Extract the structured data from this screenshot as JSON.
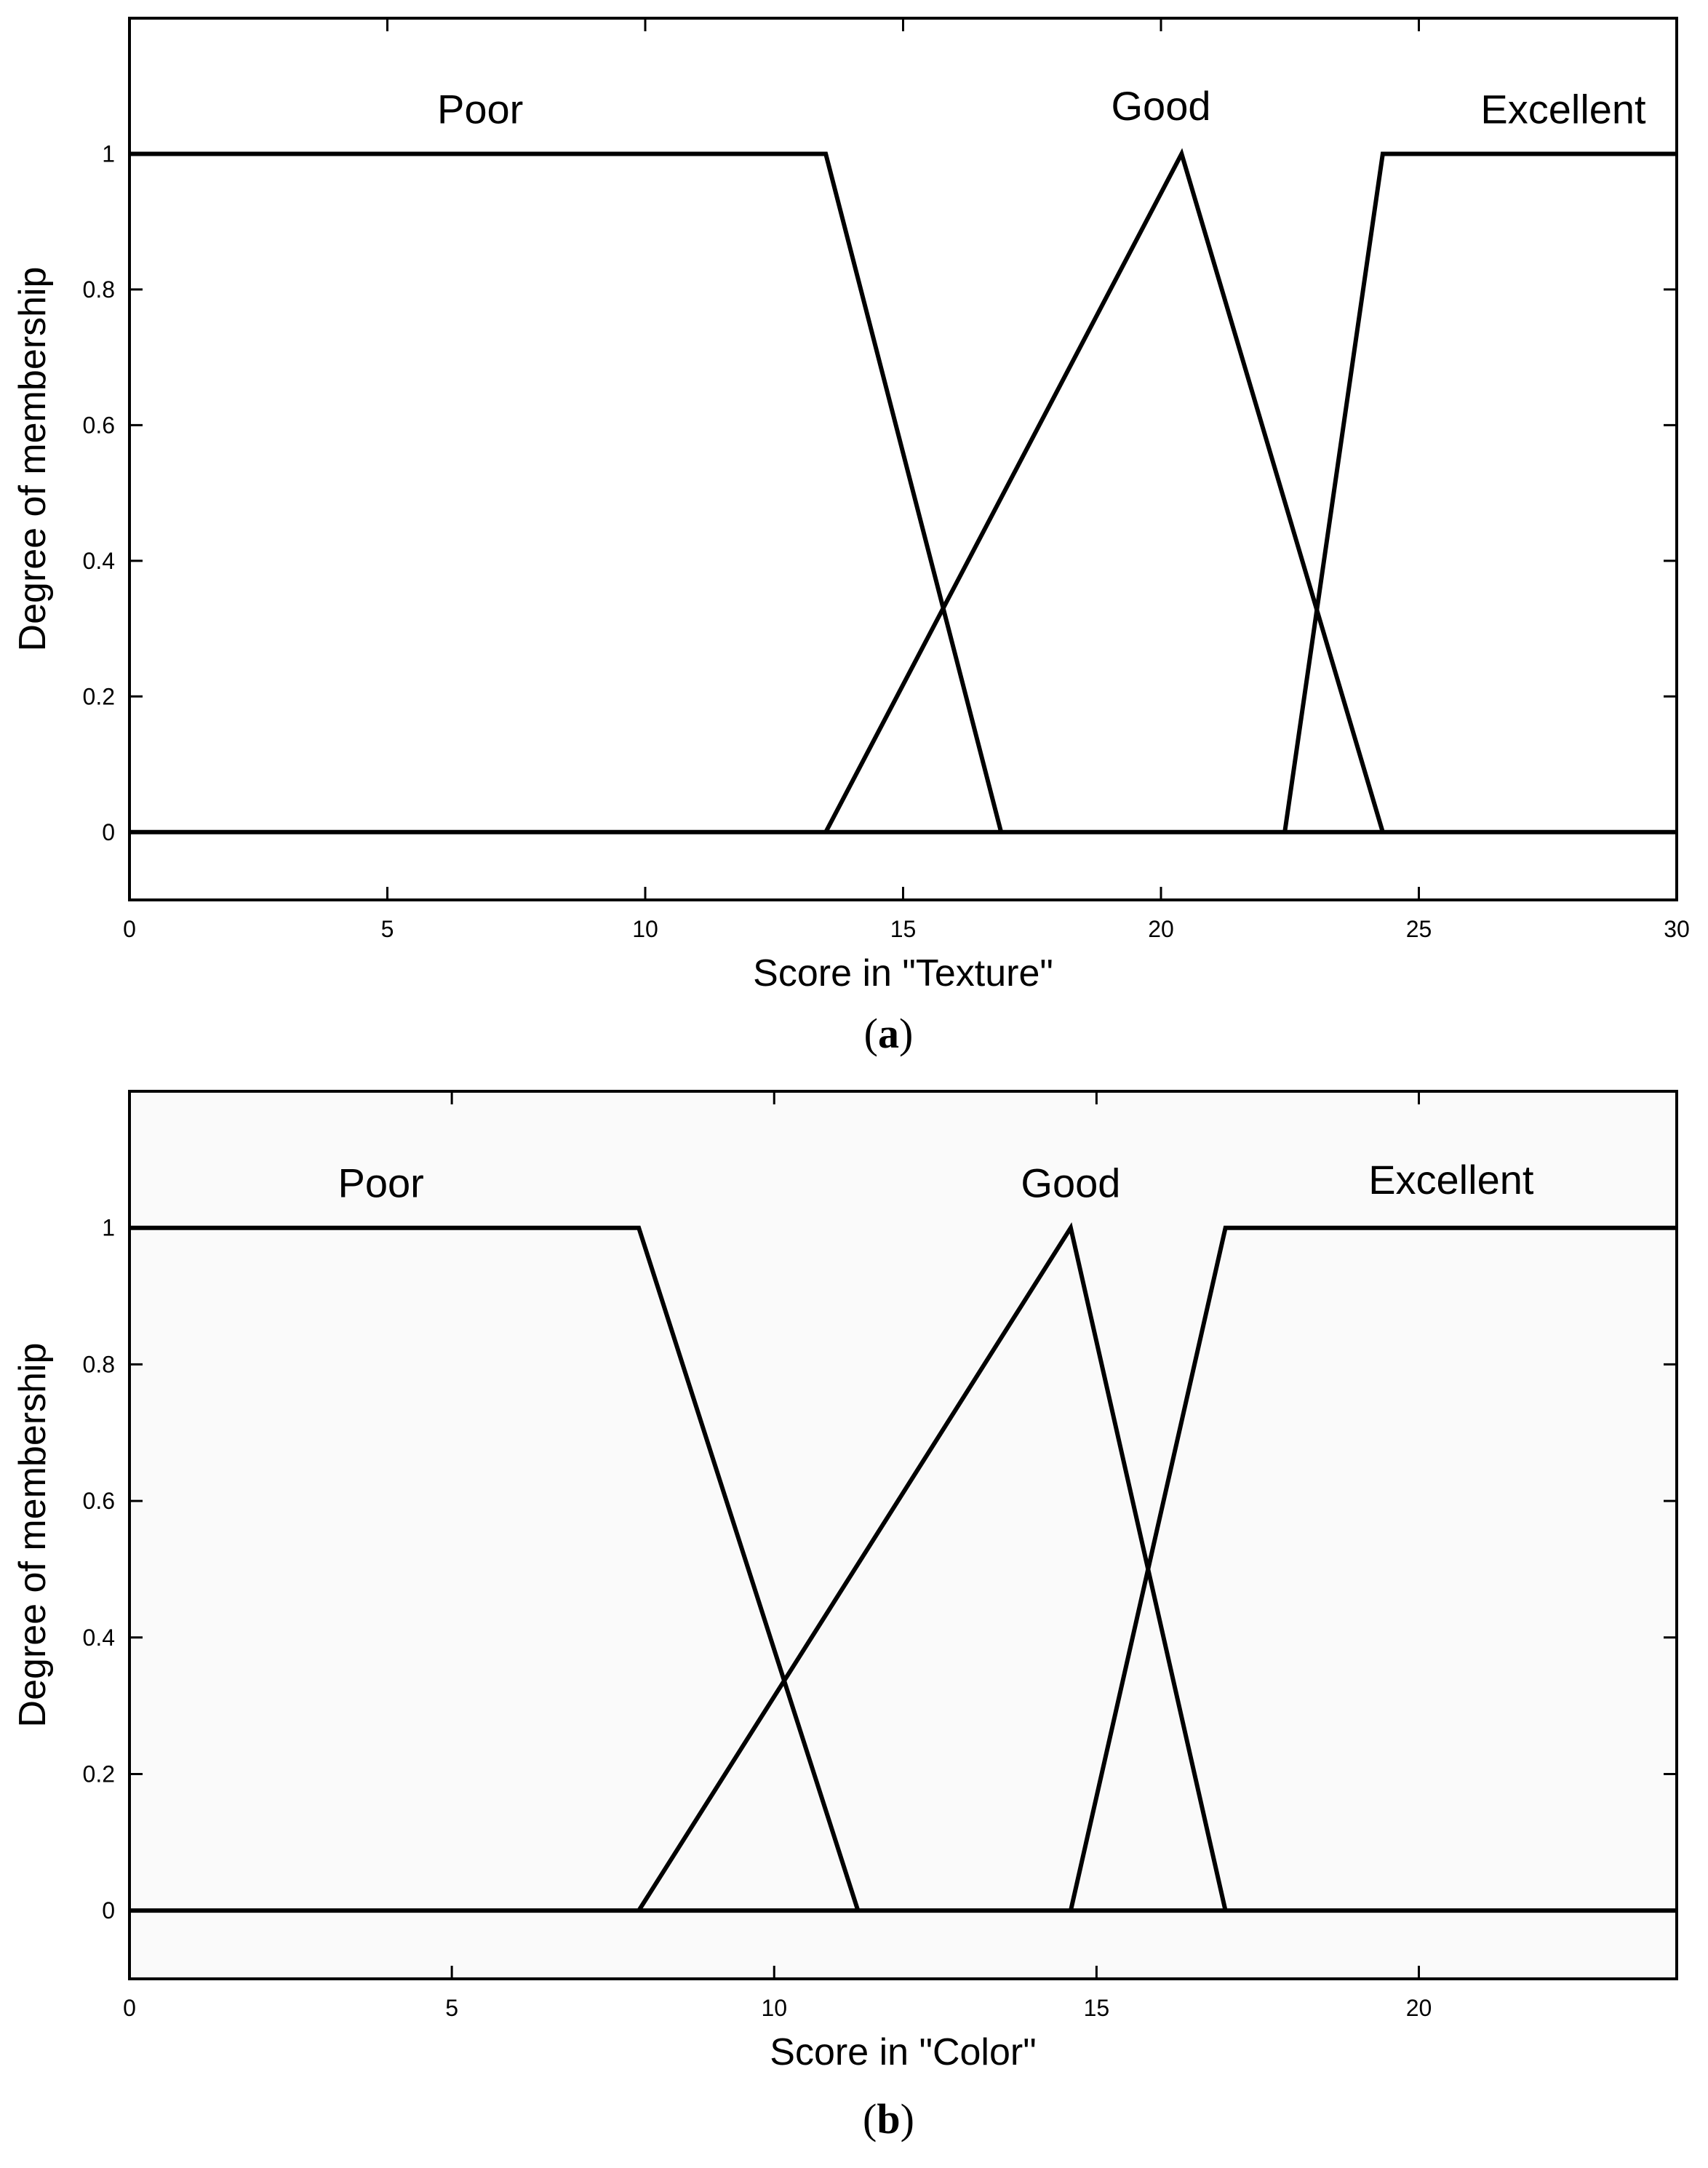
{
  "chart_data": [
    {
      "type": "line",
      "panel_label": {
        "open": "(",
        "letter": "a",
        "close": ")"
      },
      "xlabel": "Score in \"Texture\"",
      "ylabel": "Degree of membership",
      "xlim": [
        0,
        30
      ],
      "ylim": [
        -0.1,
        1.2
      ],
      "x_ticks": [
        0,
        5,
        10,
        15,
        20,
        25,
        30
      ],
      "y_ticks": [
        0,
        0.2,
        0.4,
        0.6,
        0.8,
        1
      ],
      "y_tick_labels": [
        "0",
        "0.2",
        "0.4",
        "0.6",
        "0.8",
        "1"
      ],
      "grid": false,
      "background": "#ffffff",
      "baseline": [
        [
          0,
          0
        ],
        [
          30,
          0
        ]
      ],
      "series": [
        {
          "name": "Poor",
          "points": [
            [
              0,
              1
            ],
            [
              13.5,
              1
            ],
            [
              16.9,
              0
            ]
          ],
          "label_pos": [
            6.8,
            1.045
          ]
        },
        {
          "name": "Good",
          "points": [
            [
              13.5,
              0
            ],
            [
              20.4,
              1
            ],
            [
              24.3,
              0
            ]
          ],
          "label_pos": [
            20.0,
            1.05
          ]
        },
        {
          "name": "Excellent",
          "points": [
            [
              22.4,
              0
            ],
            [
              24.3,
              1
            ],
            [
              30,
              1
            ]
          ],
          "label_pos": [
            27.8,
            1.045
          ]
        }
      ]
    },
    {
      "type": "line",
      "panel_label": {
        "open": "(",
        "letter": "b",
        "close": ")"
      },
      "xlabel": "Score in \"Color\"",
      "ylabel": "Degree of membership",
      "xlim": [
        0,
        24
      ],
      "ylim": [
        -0.1,
        1.2
      ],
      "x_ticks": [
        0,
        5,
        10,
        15,
        20
      ],
      "y_ticks": [
        0,
        0.2,
        0.4,
        0.6,
        0.8,
        1
      ],
      "y_tick_labels": [
        "0",
        "0.2",
        "0.4",
        "0.6",
        "0.8",
        "1"
      ],
      "grid": false,
      "background": "#fafafa",
      "baseline": [
        [
          0,
          0
        ],
        [
          24,
          0
        ]
      ],
      "series": [
        {
          "name": "Poor",
          "points": [
            [
              0,
              1
            ],
            [
              7.9,
              1
            ],
            [
              11.3,
              0
            ]
          ],
          "label_pos": [
            3.9,
            1.045
          ]
        },
        {
          "name": "Good",
          "points": [
            [
              7.9,
              0
            ],
            [
              14.6,
              1
            ],
            [
              17.0,
              0
            ]
          ],
          "label_pos": [
            14.6,
            1.045
          ]
        },
        {
          "name": "Excellent",
          "points": [
            [
              14.6,
              0
            ],
            [
              17.0,
              1
            ],
            [
              24,
              1
            ]
          ],
          "label_pos": [
            20.5,
            1.05
          ]
        }
      ]
    }
  ]
}
